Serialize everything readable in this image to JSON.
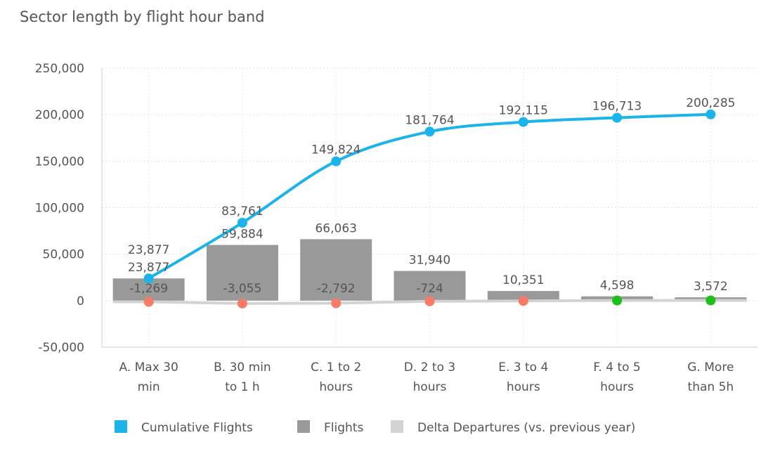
{
  "chart_data": {
    "type": "bar",
    "title": "Sector length by flight hour band",
    "xlabel": "",
    "ylabel": "",
    "ylim": [
      -50000,
      250000
    ],
    "yticks": [
      "250,000",
      "200,000",
      "150,000",
      "100,000",
      "50,000",
      "0",
      "-50,000"
    ],
    "ytick_values": [
      250000,
      200000,
      150000,
      100000,
      50000,
      0,
      -50000
    ],
    "grid": true,
    "legend_position": "bottom",
    "categories": [
      [
        "A. Max 30",
        "min"
      ],
      [
        "B. 30 min",
        "to 1 h"
      ],
      [
        "C. 1 to 2",
        "hours"
      ],
      [
        "D. 2 to 3",
        "hours"
      ],
      [
        "E. 3 to 4",
        "hours"
      ],
      [
        "F. 4 to 5",
        "hours"
      ],
      [
        "G. More",
        "than 5h"
      ]
    ],
    "series": [
      {
        "name": "Cumulative Flights",
        "type": "line",
        "color": "#1ab4ea",
        "values": [
          23877,
          83761,
          149824,
          181764,
          192115,
          196713,
          200285
        ],
        "labels": [
          "23,877",
          "83,761",
          "149,824",
          "181,764",
          "192,115",
          "196,713",
          "200,285"
        ]
      },
      {
        "name": "Flights",
        "type": "bar",
        "color": "#999999",
        "values": [
          23877,
          59884,
          66063,
          31940,
          10351,
          4598,
          3572
        ],
        "labels": [
          "23,877",
          "59,884",
          "66,063",
          "31,940",
          "10,351",
          "4,598",
          "3,572"
        ]
      },
      {
        "name": "Delta Departures (vs. previous year)",
        "type": "line",
        "color": "#d3d3d3",
        "values": [
          -1269,
          -3055,
          -2792,
          -724,
          -300,
          150,
          250
        ],
        "labels": [
          "-1,269",
          "-3,055",
          "-2,792",
          "-724",
          "",
          "",
          ""
        ],
        "marker_colors": [
          "#f77b66",
          "#f77b66",
          "#f77b66",
          "#f77b66",
          "#f77b66",
          "#1cbf1c",
          "#1cbf1c"
        ]
      }
    ]
  }
}
